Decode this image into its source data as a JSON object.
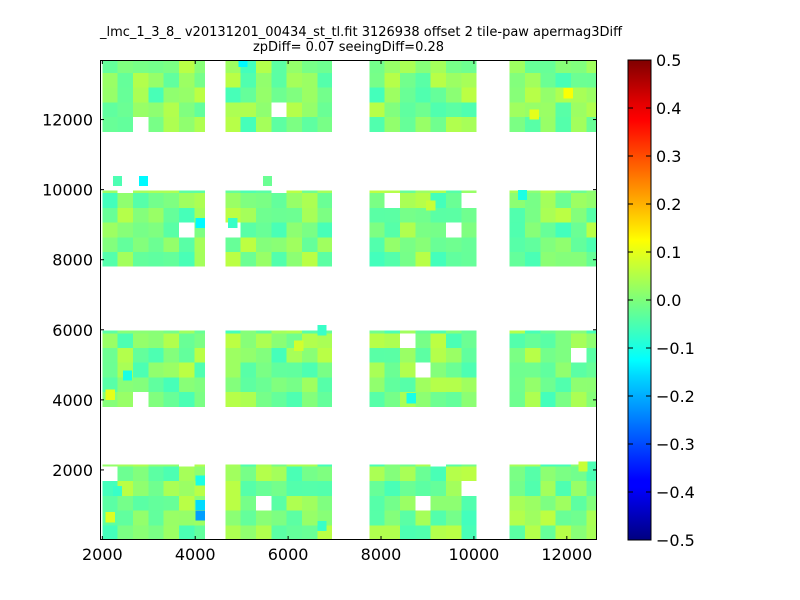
{
  "chart_data": {
    "type": "heatmap",
    "title": "_lmc_1_3_8_ v20131201_00434_st_tl.fit 3126938 offset 2 tile-paw apermag3Diff",
    "subtitle": "zpDiff= 0.07 seeingDiff=0.28",
    "xlabel": "",
    "ylabel": "",
    "xlim": [
      1950,
      12650
    ],
    "ylim": [
      0,
      13700
    ],
    "x_ticks": [
      2000,
      4000,
      6000,
      8000,
      10000,
      12000
    ],
    "y_ticks": [
      2000,
      4000,
      6000,
      8000,
      10000,
      12000
    ],
    "cell_width": 330,
    "cell_height": 420,
    "colorbar": {
      "colormap": "jet",
      "vmin": -0.5,
      "vmax": 0.5,
      "ticks": [
        0.5,
        0.4,
        0.3,
        0.2,
        0.1,
        0.0,
        -0.1,
        -0.2,
        -0.3,
        -0.4,
        -0.5
      ],
      "tick_labels": [
        "0.5",
        "0.4",
        "0.3",
        "0.2",
        "0.1",
        "0.0",
        "−0.1",
        "−0.2",
        "−0.3",
        "−0.4",
        "−0.5"
      ]
    },
    "detector_blocks": {
      "x_columns": [
        [
          2000,
          4210
        ],
        [
          4650,
          6940
        ],
        [
          7750,
          10060
        ],
        [
          10770,
          12660
        ]
      ],
      "y_rows": [
        [
          0,
          2150
        ],
        [
          3800,
          5980
        ],
        [
          7800,
          9980
        ],
        [
          11650,
          13700
        ]
      ],
      "typical_value": 0.0
    },
    "notable_cells": [
      {
        "x": 4930,
        "y": 13500,
        "value": -0.13
      },
      {
        "x": 2230,
        "y": 10100,
        "value": -0.05
      },
      {
        "x": 2790,
        "y": 10100,
        "value": -0.13
      },
      {
        "x": 5460,
        "y": 10100,
        "value": -0.02
      },
      {
        "x": 4010,
        "y": 8900,
        "value": -0.13
      },
      {
        "x": 4710,
        "y": 8900,
        "value": -0.07
      },
      {
        "x": 10950,
        "y": 9700,
        "value": -0.1
      },
      {
        "x": 2440,
        "y": 4550,
        "value": -0.1
      },
      {
        "x": 6630,
        "y": 5840,
        "value": -0.07
      },
      {
        "x": 6130,
        "y": 5400,
        "value": 0.08
      },
      {
        "x": 8970,
        "y": 9400,
        "value": 0.07
      },
      {
        "x": 2070,
        "y": 4000,
        "value": 0.1
      },
      {
        "x": 4010,
        "y": 1550,
        "value": -0.1
      },
      {
        "x": 4010,
        "y": 850,
        "value": -0.16
      },
      {
        "x": 4010,
        "y": 550,
        "value": -0.22
      },
      {
        "x": 2070,
        "y": 500,
        "value": 0.09
      },
      {
        "x": 2230,
        "y": 1250,
        "value": -0.07
      },
      {
        "x": 6630,
        "y": 250,
        "value": -0.07
      },
      {
        "x": 8550,
        "y": 3900,
        "value": -0.1
      },
      {
        "x": 11930,
        "y": 12600,
        "value": 0.12
      },
      {
        "x": 11200,
        "y": 12000,
        "value": 0.1
      },
      {
        "x": 12250,
        "y": 1950,
        "value": 0.07
      },
      {
        "x": 12450,
        "y": 1950,
        "value": -0.05
      }
    ]
  }
}
